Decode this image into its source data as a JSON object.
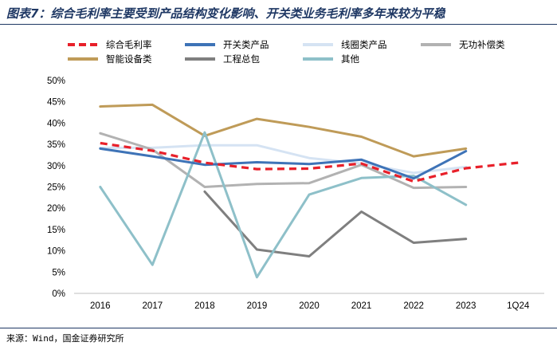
{
  "header": {
    "title": "图表7：综合毛利率主要受到产品结构变化影响、开关类业务毛利率多年来较为平稳"
  },
  "footer": {
    "source": "来源：Wind，国金证券研究所"
  },
  "chart_data": {
    "type": "line",
    "title": "综合毛利率主要受到产品结构变化影响、开关类业务毛利率多年来较为平稳",
    "xlabel": "",
    "ylabel": "",
    "categories": [
      "2016",
      "2017",
      "2018",
      "2019",
      "2020",
      "2021",
      "2022",
      "2023",
      "1Q24"
    ],
    "ylim": [
      0,
      50
    ],
    "yticks": [
      "0%",
      "5%",
      "10%",
      "15%",
      "20%",
      "25%",
      "30%",
      "35%",
      "40%",
      "45%",
      "50%"
    ],
    "legend_position": "top",
    "series": [
      {
        "name": "综合毛利率",
        "color": "#e8202a",
        "dashed": true,
        "values": [
          35.3,
          33.5,
          30.7,
          29.2,
          29.3,
          30.5,
          26.3,
          29.4,
          30.7
        ]
      },
      {
        "name": "开关类产品",
        "color": "#3e73b7",
        "dashed": false,
        "values": [
          34.0,
          32.2,
          30.2,
          30.8,
          30.4,
          31.4,
          27.0,
          33.4,
          null
        ]
      },
      {
        "name": "线圈类产品",
        "color": "#d5e3f3",
        "dashed": false,
        "values": [
          34.2,
          34.2,
          34.8,
          34.8,
          31.8,
          30.5,
          28.3,
          29.7,
          null
        ]
      },
      {
        "name": "无功补偿类",
        "color": "#b2b2b2",
        "dashed": false,
        "values": [
          37.6,
          33.8,
          25.0,
          25.7,
          25.9,
          30.2,
          24.8,
          25.0,
          null
        ]
      },
      {
        "name": "智能设备类",
        "color": "#bf9b58",
        "dashed": false,
        "values": [
          43.9,
          44.3,
          37.0,
          41.0,
          39.1,
          36.8,
          32.2,
          34.0,
          null
        ]
      },
      {
        "name": "工程总包",
        "color": "#7f7f7f",
        "dashed": false,
        "values": [
          null,
          null,
          23.9,
          10.3,
          8.7,
          19.2,
          11.9,
          12.8,
          null
        ]
      },
      {
        "name": "其他",
        "color": "#8ec0c9",
        "dashed": false,
        "values": [
          25.0,
          6.7,
          37.8,
          3.8,
          23.2,
          27.1,
          27.6,
          20.8,
          null
        ]
      }
    ]
  }
}
